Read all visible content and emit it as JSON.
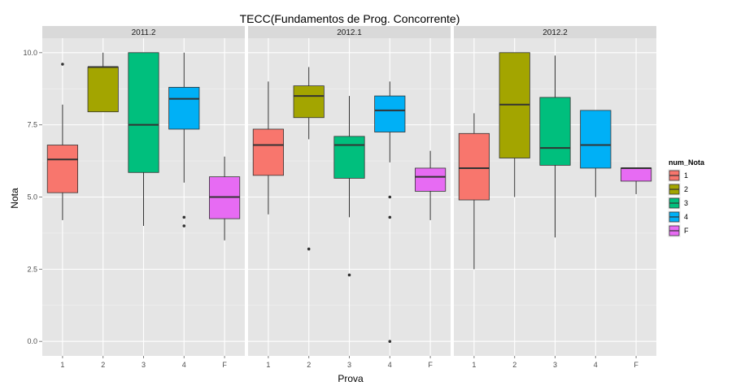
{
  "chart_data": {
    "type": "boxplot",
    "title": "TECC(Fundamentos de Prog. Concorrente)",
    "xlabel": "Prova",
    "ylabel": "Nota",
    "ylim": [
      -0.5,
      10.5
    ],
    "yticks": [
      0.0,
      2.5,
      5.0,
      7.5,
      10.0
    ],
    "ytick_labels": [
      "0.0",
      "2.5",
      "5.0",
      "7.5",
      "10.0"
    ],
    "categories": [
      "1",
      "2",
      "3",
      "4",
      "F"
    ],
    "grid": true,
    "legend": {
      "title": "num_Nota",
      "position": "right",
      "entries": [
        {
          "label": "1",
          "color": "#F8766D"
        },
        {
          "label": "2",
          "color": "#A3A500"
        },
        {
          "label": "3",
          "color": "#00BF7D"
        },
        {
          "label": "4",
          "color": "#00B0F6"
        },
        {
          "label": "F",
          "color": "#E76BF3"
        }
      ]
    },
    "panels": [
      {
        "label": "2011.2",
        "boxes": [
          {
            "category": "1",
            "whisker_low": 4.2,
            "q1": 5.15,
            "median": 6.3,
            "q3": 6.8,
            "whisker_high": 8.2,
            "outliers": [
              9.6
            ]
          },
          {
            "category": "2",
            "whisker_low": 7.95,
            "q1": 7.95,
            "median": 9.5,
            "q3": 9.5,
            "whisker_high": 10.0,
            "outliers": []
          },
          {
            "category": "3",
            "whisker_low": 4.0,
            "q1": 5.85,
            "median": 7.5,
            "q3": 10.0,
            "whisker_high": 10.0,
            "outliers": []
          },
          {
            "category": "4",
            "whisker_low": 5.5,
            "q1": 7.35,
            "median": 8.4,
            "q3": 8.8,
            "whisker_high": 10.0,
            "outliers": [
              4.3,
              4.0
            ]
          },
          {
            "category": "F",
            "whisker_low": 3.5,
            "q1": 4.25,
            "median": 5.0,
            "q3": 5.7,
            "whisker_high": 6.4,
            "outliers": []
          }
        ]
      },
      {
        "label": "2012.1",
        "boxes": [
          {
            "category": "1",
            "whisker_low": 4.4,
            "q1": 5.75,
            "median": 6.8,
            "q3": 7.35,
            "whisker_high": 9.0,
            "outliers": []
          },
          {
            "category": "2",
            "whisker_low": 7.0,
            "q1": 7.75,
            "median": 8.5,
            "q3": 8.85,
            "whisker_high": 9.5,
            "outliers": [
              3.2
            ]
          },
          {
            "category": "3",
            "whisker_low": 4.3,
            "q1": 5.65,
            "median": 6.8,
            "q3": 7.1,
            "whisker_high": 8.5,
            "outliers": [
              2.3
            ]
          },
          {
            "category": "4",
            "whisker_low": 6.2,
            "q1": 7.25,
            "median": 8.0,
            "q3": 8.5,
            "whisker_high": 9.0,
            "outliers": [
              5.0,
              4.3,
              0.0
            ]
          },
          {
            "category": "F",
            "whisker_low": 4.2,
            "q1": 5.2,
            "median": 5.7,
            "q3": 6.0,
            "whisker_high": 6.6,
            "outliers": []
          }
        ]
      },
      {
        "label": "2012.2",
        "boxes": [
          {
            "category": "1",
            "whisker_low": 2.5,
            "q1": 4.9,
            "median": 6.0,
            "q3": 7.2,
            "whisker_high": 7.9,
            "outliers": []
          },
          {
            "category": "2",
            "whisker_low": 5.0,
            "q1": 6.35,
            "median": 8.2,
            "q3": 10.0,
            "whisker_high": 10.0,
            "outliers": []
          },
          {
            "category": "3",
            "whisker_low": 3.6,
            "q1": 6.1,
            "median": 6.7,
            "q3": 8.45,
            "whisker_high": 9.9,
            "outliers": []
          },
          {
            "category": "4",
            "whisker_low": 5.0,
            "q1": 6.0,
            "median": 6.8,
            "q3": 8.0,
            "whisker_high": 8.0,
            "outliers": []
          },
          {
            "category": "F",
            "whisker_low": 5.1,
            "q1": 5.55,
            "median": 6.0,
            "q3": 6.0,
            "whisker_high": 6.0,
            "outliers": []
          }
        ]
      }
    ]
  }
}
